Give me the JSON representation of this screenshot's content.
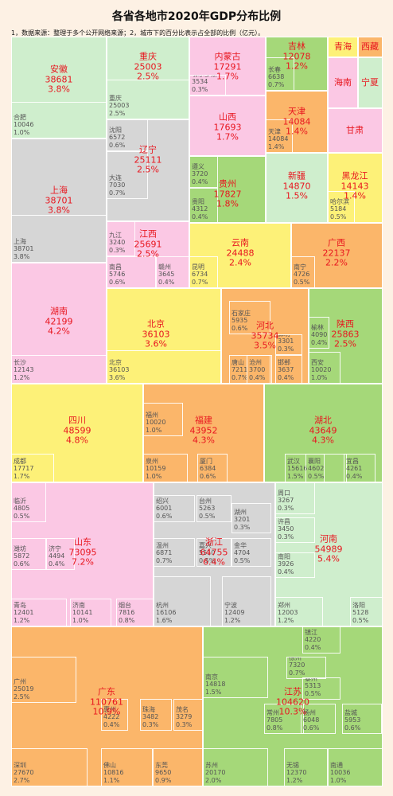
{
  "title": "各省各地市2020年GDP分布比例",
  "note": "1，数据来源：整理于多个公开网络来源；2，城市下的百分比表示占全部的比例（亿元）。",
  "chart_data": {
    "type": "treemap",
    "unit": "亿元",
    "provinces": [
      {
        "name": "安徽",
        "value": "38681",
        "pct": "3.8%",
        "color": "#cfeecd",
        "cities": [
          {
            "name": "合肥",
            "value": "10046",
            "pct": "1.0%"
          }
        ]
      },
      {
        "name": "重庆",
        "value": "25003",
        "pct": "2.5%",
        "color": "#cfeecd",
        "cities": [
          {
            "name": "重庆",
            "value": "25003",
            "pct": "2.5%"
          }
        ]
      },
      {
        "name": "内蒙古",
        "value": "17291",
        "pct": "1.7%",
        "color": "#fbc8e4",
        "cities": [
          {
            "name": "鄂尔多斯",
            "value": "3534",
            "pct": "0.3%"
          }
        ]
      },
      {
        "name": "吉林",
        "value": "12078",
        "pct": "1.2%",
        "color": "#a5d879",
        "cities": [
          {
            "name": "长春",
            "value": "6638",
            "pct": "0.7%"
          }
        ]
      },
      {
        "name": "青海",
        "value": "",
        "pct": "",
        "color": "#fdf178",
        "cities": []
      },
      {
        "name": "西藏",
        "value": "",
        "pct": "",
        "color": "#fbb66a",
        "cities": []
      },
      {
        "name": "海南",
        "value": "",
        "pct": "",
        "color": "#fbc8e4",
        "cities": []
      },
      {
        "name": "宁夏",
        "value": "",
        "pct": "",
        "color": "#cfeecd",
        "cities": []
      },
      {
        "name": "辽宁",
        "value": "25111",
        "pct": "2.5%",
        "color": "#d6d6d6",
        "cities": [
          {
            "name": "沈阳",
            "value": "6572",
            "pct": "0.6%"
          },
          {
            "name": "大连",
            "value": "7030",
            "pct": "0.7%"
          }
        ]
      },
      {
        "name": "山西",
        "value": "17693",
        "pct": "1.7%",
        "color": "#fbc8e4",
        "cities": []
      },
      {
        "name": "天津",
        "value": "14084",
        "pct": "1.4%",
        "color": "#fbb66a",
        "cities": [
          {
            "name": "天津",
            "value": "14084",
            "pct": "1.4%"
          }
        ]
      },
      {
        "name": "甘肃",
        "value": "",
        "pct": "",
        "color": "#fbc8e4",
        "cities": []
      },
      {
        "name": "上海",
        "value": "38701",
        "pct": "3.8%",
        "color": "#d6d6d6",
        "cities": [
          {
            "name": "上海",
            "value": "38701",
            "pct": "3.8%"
          }
        ]
      },
      {
        "name": "贵州",
        "value": "17827",
        "pct": "1.8%",
        "color": "#a5d879",
        "cities": [
          {
            "name": "遵义",
            "value": "3720",
            "pct": "0.4%"
          },
          {
            "name": "贵阳",
            "value": "4312",
            "pct": "0.4%"
          }
        ]
      },
      {
        "name": "新疆",
        "value": "14870",
        "pct": "1.5%",
        "color": "#cfeecd",
        "cities": []
      },
      {
        "name": "黑龙江",
        "value": "14143",
        "pct": "1.4%",
        "color": "#fdf178",
        "cities": [
          {
            "name": "哈尔滨",
            "value": "5184",
            "pct": "0.5%"
          }
        ]
      },
      {
        "name": "江西",
        "value": "25691",
        "pct": "2.5%",
        "color": "#fbc8e4",
        "cities": [
          {
            "name": "九江",
            "value": "3240",
            "pct": "0.3%"
          },
          {
            "name": "南昌",
            "value": "5746",
            "pct": "0.6%"
          },
          {
            "name": "赣州",
            "value": "3645",
            "pct": "0.4%"
          }
        ]
      },
      {
        "name": "云南",
        "value": "24488",
        "pct": "2.4%",
        "color": "#fdf178",
        "cities": [
          {
            "name": "昆明",
            "value": "6734",
            "pct": "0.7%"
          }
        ]
      },
      {
        "name": "广西",
        "value": "22137",
        "pct": "2.2%",
        "color": "#fbb66a",
        "cities": [
          {
            "name": "南宁",
            "value": "4726",
            "pct": "0.5%"
          }
        ]
      },
      {
        "name": "湖南",
        "value": "42199",
        "pct": "4.2%",
        "color": "#fbc8e4",
        "cities": [
          {
            "name": "长沙",
            "value": "12143",
            "pct": "1.2%"
          }
        ]
      },
      {
        "name": "北京",
        "value": "36103",
        "pct": "3.6%",
        "color": "#fdf178",
        "cities": [
          {
            "name": "北京",
            "value": "36103",
            "pct": "3.6%"
          }
        ]
      },
      {
        "name": "河北",
        "value": "35734",
        "pct": "3.5%",
        "color": "#fbb66a",
        "cities": [
          {
            "name": "石家庄",
            "value": "5935",
            "pct": "0.6%"
          },
          {
            "name": "廊坊",
            "value": "3301",
            "pct": "0.3%"
          },
          {
            "name": "唐山",
            "value": "7211",
            "pct": "0.7%"
          },
          {
            "name": "沧州",
            "value": "3700",
            "pct": "0.4%"
          },
          {
            "name": "邯郸",
            "value": "3637",
            "pct": "0.4%"
          }
        ]
      },
      {
        "name": "陕西",
        "value": "25863",
        "pct": "2.5%",
        "color": "#a5d879",
        "cities": [
          {
            "name": "榆林",
            "value": "4090",
            "pct": "0.4%"
          },
          {
            "name": "西安",
            "value": "10020",
            "pct": "1.0%"
          }
        ]
      },
      {
        "name": "四川",
        "value": "48599",
        "pct": "4.8%",
        "color": "#fdf178",
        "cities": [
          {
            "name": "成都",
            "value": "17717",
            "pct": "1.7%"
          }
        ]
      },
      {
        "name": "福建",
        "value": "43952",
        "pct": "4.3%",
        "color": "#fbb66a",
        "cities": [
          {
            "name": "福州",
            "value": "10020",
            "pct": "1.0%"
          },
          {
            "name": "泉州",
            "value": "10159",
            "pct": "1.0%"
          },
          {
            "name": "厦门",
            "value": "6384",
            "pct": "0.6%"
          }
        ]
      },
      {
        "name": "湖北",
        "value": "43649",
        "pct": "4.3%",
        "color": "#a5d879",
        "cities": [
          {
            "name": "武汉",
            "value": "15616",
            "pct": "1.5%"
          },
          {
            "name": "襄阳",
            "value": "4602",
            "pct": "0.5%"
          },
          {
            "name": "宜昌",
            "value": "4261",
            "pct": "0.4%"
          }
        ]
      },
      {
        "name": "山东",
        "value": "73095",
        "pct": "7.2%",
        "color": "#fbc8e4",
        "cities": [
          {
            "name": "临沂",
            "value": "4805",
            "pct": "0.5%"
          },
          {
            "name": "潍坊",
            "value": "5872",
            "pct": "0.6%"
          },
          {
            "name": "济宁",
            "value": "4494",
            "pct": "0.4%"
          },
          {
            "name": "青岛",
            "value": "12401",
            "pct": "1.2%"
          },
          {
            "name": "济南",
            "value": "10141",
            "pct": "1.0%"
          },
          {
            "name": "烟台",
            "value": "7816",
            "pct": "0.8%"
          }
        ]
      },
      {
        "name": "浙江",
        "value": "64755",
        "pct": "6.4%",
        "color": "#d6d6d6",
        "cities": [
          {
            "name": "绍兴",
            "value": "6001",
            "pct": "0.6%"
          },
          {
            "name": "台州",
            "value": "5263",
            "pct": "0.5%"
          },
          {
            "name": "湖州",
            "value": "3201",
            "pct": "0.3%"
          },
          {
            "name": "温州",
            "value": "6871",
            "pct": "0.7%"
          },
          {
            "name": "嘉兴",
            "value": "5510",
            "pct": "0.5%"
          },
          {
            "name": "金华",
            "value": "4704",
            "pct": "0.5%"
          },
          {
            "name": "杭州",
            "value": "16106",
            "pct": "1.6%"
          },
          {
            "name": "宁波",
            "value": "12409",
            "pct": "1.2%"
          }
        ]
      },
      {
        "name": "河南",
        "value": "54989",
        "pct": "5.4%",
        "color": "#cfeecd",
        "cities": [
          {
            "name": "周口",
            "value": "3267",
            "pct": "0.3%"
          },
          {
            "name": "许昌",
            "value": "3450",
            "pct": "0.3%"
          },
          {
            "name": "南阳",
            "value": "3926",
            "pct": "0.4%"
          },
          {
            "name": "郑州",
            "value": "12003",
            "pct": "1.2%"
          },
          {
            "name": "洛阳",
            "value": "5128",
            "pct": "0.5%"
          }
        ]
      },
      {
        "name": "广东",
        "value": "110761",
        "pct": "10.9%",
        "color": "#fbb66a",
        "cities": [
          {
            "name": "广州",
            "value": "25019",
            "pct": "2.5%"
          },
          {
            "name": "深圳",
            "value": "27670",
            "pct": "2.7%"
          },
          {
            "name": "东莞",
            "value": "9650",
            "pct": "0.9%"
          },
          {
            "name": "佛山",
            "value": "10816",
            "pct": "1.1%"
          },
          {
            "name": "珠海",
            "value": "3482",
            "pct": "0.3%"
          },
          {
            "name": "茂名",
            "value": "3279",
            "pct": "0.3%"
          },
          {
            "name": "惠州",
            "value": "4222",
            "pct": "0.4%"
          }
        ]
      },
      {
        "name": "江苏",
        "value": "104620",
        "pct": "10.3%",
        "color": "#a5d879",
        "cities": [
          {
            "name": "南京",
            "value": "14818",
            "pct": "1.5%"
          },
          {
            "name": "镇江",
            "value": "4220",
            "pct": "0.4%"
          },
          {
            "name": "徐州",
            "value": "7320",
            "pct": "0.7%"
          },
          {
            "name": "泰州",
            "value": "5313",
            "pct": "0.5%"
          },
          {
            "name": "常州",
            "value": "7805",
            "pct": "0.8%"
          },
          {
            "name": "南通",
            "value": "10036",
            "pct": "1.0%"
          },
          {
            "name": "盐城",
            "value": "5953",
            "pct": "0.6%"
          },
          {
            "name": "苏州",
            "value": "20170",
            "pct": "2.0%"
          },
          {
            "name": "无锡",
            "value": "12370",
            "pct": "1.2%"
          },
          {
            "name": "扬州",
            "value": "6048",
            "pct": "0.6%"
          }
        ]
      }
    ]
  }
}
